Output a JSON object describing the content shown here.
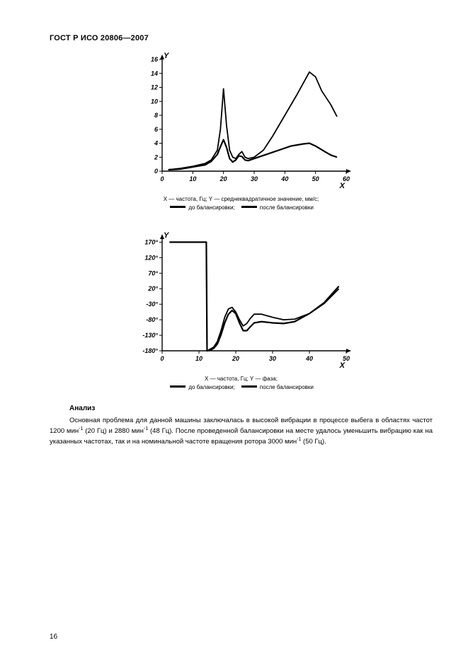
{
  "header": "ГОСТ Р ИСО 20806—2007",
  "page_number": "16",
  "chart1": {
    "type": "line",
    "axis_x_label": "X",
    "axis_y_label": "Y",
    "xlim": [
      0,
      60
    ],
    "ylim": [
      0,
      16
    ],
    "xtick_labels": [
      "0",
      "10",
      "20",
      "30",
      "40",
      "50",
      "60"
    ],
    "ytick_labels": [
      "0",
      "2",
      "4",
      "6",
      "8",
      "10",
      "12",
      "14",
      "16"
    ],
    "xtick_step": 10,
    "ytick_step": 2,
    "line_color": "#000000",
    "line_width_before": 1.8,
    "line_width_after": 2.2,
    "background_color": "#ffffff",
    "caption_line1_prefix": "X — частота, Гц; Y — среднеквадратичное значение, мм/с;",
    "caption_line2_before": "до балансировки;",
    "caption_line2_after": "после балансировки",
    "series_before": [
      [
        2,
        0.2
      ],
      [
        6,
        0.4
      ],
      [
        10,
        0.7
      ],
      [
        14,
        1.1
      ],
      [
        16,
        1.6
      ],
      [
        18,
        3.0
      ],
      [
        19,
        6.0
      ],
      [
        20,
        11.8
      ],
      [
        21,
        6.5
      ],
      [
        22,
        3.0
      ],
      [
        23,
        2.0
      ],
      [
        24,
        1.8
      ],
      [
        25,
        2.4
      ],
      [
        26,
        2.8
      ],
      [
        27,
        2.0
      ],
      [
        28,
        1.8
      ],
      [
        30,
        2.0
      ],
      [
        33,
        3.0
      ],
      [
        36,
        5.0
      ],
      [
        40,
        8.0
      ],
      [
        44,
        11.0
      ],
      [
        48,
        14.2
      ],
      [
        50,
        13.5
      ],
      [
        52,
        11.5
      ],
      [
        55,
        9.5
      ],
      [
        57,
        7.8
      ]
    ],
    "series_after": [
      [
        2,
        0.2
      ],
      [
        6,
        0.3
      ],
      [
        10,
        0.6
      ],
      [
        14,
        0.9
      ],
      [
        16,
        1.4
      ],
      [
        18,
        2.4
      ],
      [
        19,
        3.5
      ],
      [
        20,
        4.5
      ],
      [
        21,
        3.4
      ],
      [
        22,
        1.8
      ],
      [
        23,
        1.3
      ],
      [
        24,
        1.6
      ],
      [
        25,
        2.2
      ],
      [
        26,
        2.1
      ],
      [
        27,
        1.6
      ],
      [
        28,
        1.5
      ],
      [
        30,
        1.8
      ],
      [
        34,
        2.4
      ],
      [
        38,
        3.0
      ],
      [
        42,
        3.6
      ],
      [
        46,
        3.9
      ],
      [
        48,
        4.0
      ],
      [
        50,
        3.6
      ],
      [
        53,
        2.8
      ],
      [
        55,
        2.3
      ],
      [
        57,
        2.0
      ]
    ]
  },
  "chart2": {
    "type": "line",
    "axis_x_label": "X",
    "axis_y_label": "Y",
    "xlim": [
      0,
      50
    ],
    "ylim": [
      -180,
      180
    ],
    "xtick_labels": [
      "0",
      "10",
      "20",
      "30",
      "40",
      "50"
    ],
    "ytick_labels": [
      "-180°",
      "-130°",
      "-80°",
      "-30°",
      "20°",
      "70°",
      "120°",
      "170°"
    ],
    "xtick_step": 10,
    "ytick_step": 50,
    "line_color": "#000000",
    "line_width_before": 1.8,
    "line_width_after": 2.2,
    "background_color": "#ffffff",
    "caption_line1_prefix": "X — частота, Гц; Y — фаза;",
    "caption_line2_before": "до балансировки;",
    "caption_line2_after": "после балансировки",
    "series_before": [
      [
        2,
        170
      ],
      [
        12,
        170
      ],
      [
        12.2,
        -180
      ],
      [
        13,
        -175
      ],
      [
        14,
        -168
      ],
      [
        15,
        -150
      ],
      [
        16,
        -115
      ],
      [
        17,
        -72
      ],
      [
        18,
        -45
      ],
      [
        19,
        -40
      ],
      [
        20,
        -55
      ],
      [
        21,
        -80
      ],
      [
        22,
        -100
      ],
      [
        23,
        -92
      ],
      [
        24,
        -75
      ],
      [
        25,
        -62
      ],
      [
        27,
        -62
      ],
      [
        30,
        -72
      ],
      [
        33,
        -80
      ],
      [
        36,
        -78
      ],
      [
        40,
        -60
      ],
      [
        44,
        -28
      ],
      [
        48,
        20
      ]
    ],
    "series_after": [
      [
        2,
        170
      ],
      [
        12,
        170
      ],
      [
        12.2,
        -180
      ],
      [
        13,
        -178
      ],
      [
        14,
        -172
      ],
      [
        15,
        -158
      ],
      [
        16,
        -128
      ],
      [
        17,
        -90
      ],
      [
        18,
        -62
      ],
      [
        19,
        -50
      ],
      [
        20,
        -60
      ],
      [
        21,
        -90
      ],
      [
        22,
        -115
      ],
      [
        23,
        -115
      ],
      [
        24,
        -102
      ],
      [
        25,
        -90
      ],
      [
        27,
        -86
      ],
      [
        30,
        -90
      ],
      [
        33,
        -92
      ],
      [
        36,
        -86
      ],
      [
        40,
        -60
      ],
      [
        44,
        -25
      ],
      [
        48,
        28
      ]
    ]
  },
  "analysis": {
    "title": "Анализ",
    "body_html": "Основная проблема для данной машины заключалась в высокой вибрации в процессе выбега в областях частот 1200 мин<span class=\"sup\">-1</span> (20 Гц) и 2880 мин<span class=\"sup\">-1</span> (48 Гц). После проведенной балансировки на месте удалось уменьшить вибрацию как на указанных частотах, так и на номинальной частоте вращения ротора 3000 мин<span class=\"sup\">-1</span> (50 Гц)."
  }
}
